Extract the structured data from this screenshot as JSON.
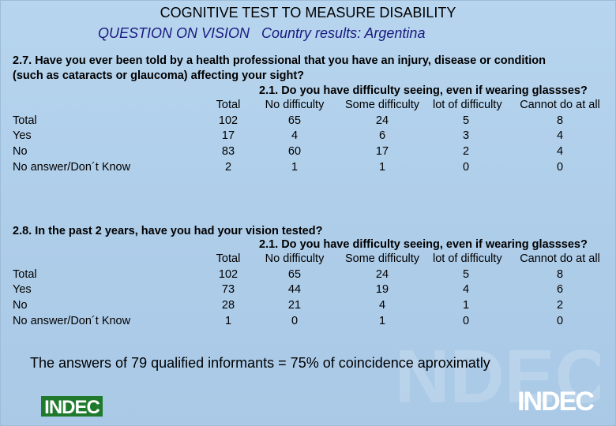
{
  "title": "COGNITIVE TEST TO MEASURE DISABILITY",
  "subtitle": "QUESTION ON VISION   Country results: Argentina",
  "section1": {
    "question_line1": "2.7. Have you ever been told by a health professional that you have an injury, disease or condition",
    "question_line2": "(such as cataracts or glaucoma) affecting your sight?",
    "subquestion": "2.1. Do you have difficulty seeing, even if wearing glassses?",
    "headers": [
      "",
      "Total",
      "No difficulty",
      "Some difficulty",
      "lot of difficulty",
      "Cannot do at all"
    ],
    "rows": [
      [
        "Total",
        "102",
        "65",
        "24",
        "5",
        "8"
      ],
      [
        "Yes",
        "17",
        "4",
        "6",
        "3",
        "4"
      ],
      [
        "No",
        "83",
        "60",
        "17",
        "2",
        "4"
      ],
      [
        "No answer/Don´t Know",
        "2",
        "1",
        "1",
        "0",
        "0"
      ]
    ]
  },
  "section2": {
    "question_line1": "2.8. In the past 2 years, have you had your vision tested?",
    "subquestion": "2.1. Do you have difficulty seeing, even if wearing glassses?",
    "headers": [
      "",
      "Total",
      "No difficulty",
      "Some difficulty",
      "lot of difficulty",
      "Cannot do at all"
    ],
    "rows": [
      [
        "Total",
        "102",
        "65",
        "24",
        "5",
        "8"
      ],
      [
        "Yes",
        "73",
        "44",
        "19",
        "4",
        "6"
      ],
      [
        "No",
        "28",
        "21",
        "4",
        "1",
        "2"
      ],
      [
        "No answer/Don´t Know",
        "1",
        "0",
        "1",
        "0",
        "0"
      ]
    ]
  },
  "footer": "The answers of 79 qualified informants = 75% of coincidence aproximatly",
  "logo_text": "INDEC",
  "colors": {
    "logo_green": "#1f7a2e",
    "subtitle_blue": "#1a1a80",
    "background": "#b2d0ea"
  }
}
